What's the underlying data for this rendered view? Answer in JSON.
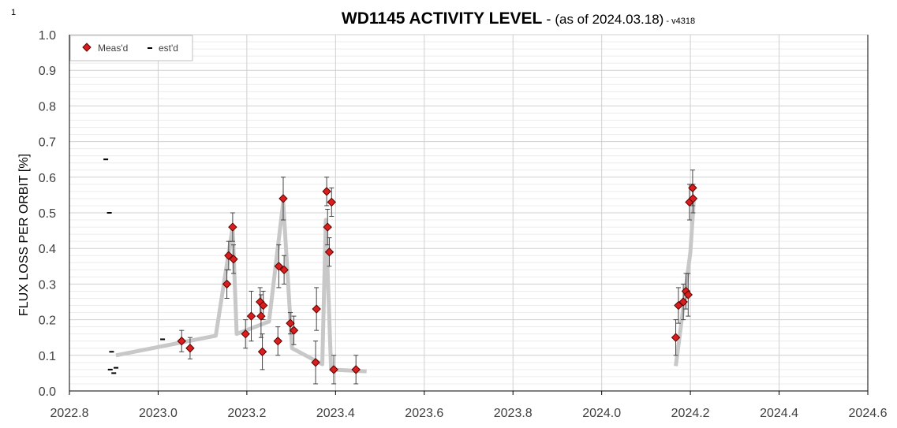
{
  "page_number": "1",
  "chart_data": {
    "type": "scatter",
    "title": {
      "main": "WD1145 ACTIVITY LEVEL",
      "dash": " - ",
      "date": "(as of 2024.03.18)",
      "version": " - v4318"
    },
    "xlabel": "",
    "ylabel": "FLUX LOSS  PER ORBIT [%]",
    "xlim": [
      2022.8,
      2024.6
    ],
    "ylim": [
      0.0,
      1.0
    ],
    "x_ticks": [
      "2022.8",
      "2023.0",
      "2023.2",
      "2023.4",
      "2023.6",
      "2023.8",
      "2024.0",
      "2024.2",
      "2024.4",
      "2024.6"
    ],
    "y_ticks": [
      "0.0",
      "0.1",
      "0.2",
      "0.3",
      "0.4",
      "0.5",
      "0.6",
      "0.7",
      "0.8",
      "0.9",
      "1.0"
    ],
    "grid": true,
    "legend_position": "top-left",
    "colors": {
      "measured": "#d91e1e",
      "trend": "#c8c8c8",
      "estimated": "#000000"
    },
    "series": [
      {
        "name": "Meas'd",
        "marker": "diamond",
        "points": [
          {
            "x": 2023.053,
            "y": 0.14,
            "err": 0.03
          },
          {
            "x": 2023.072,
            "y": 0.12,
            "err": 0.03
          },
          {
            "x": 2023.155,
            "y": 0.3,
            "err": 0.04
          },
          {
            "x": 2023.159,
            "y": 0.38,
            "err": 0.04
          },
          {
            "x": 2023.168,
            "y": 0.46,
            "err": 0.04
          },
          {
            "x": 2023.17,
            "y": 0.37,
            "err": 0.04
          },
          {
            "x": 2023.197,
            "y": 0.16,
            "err": 0.04
          },
          {
            "x": 2023.21,
            "y": 0.21,
            "err": 0.07
          },
          {
            "x": 2023.23,
            "y": 0.25,
            "err": 0.04
          },
          {
            "x": 2023.232,
            "y": 0.21,
            "err": 0.06
          },
          {
            "x": 2023.235,
            "y": 0.11,
            "err": 0.05
          },
          {
            "x": 2023.237,
            "y": 0.24,
            "err": 0.04
          },
          {
            "x": 2023.27,
            "y": 0.14,
            "err": 0.04
          },
          {
            "x": 2023.272,
            "y": 0.35,
            "err": 0.06
          },
          {
            "x": 2023.282,
            "y": 0.54,
            "err": 0.06
          },
          {
            "x": 2023.284,
            "y": 0.34,
            "err": 0.04
          },
          {
            "x": 2023.298,
            "y": 0.19,
            "err": 0.03
          },
          {
            "x": 2023.306,
            "y": 0.17,
            "err": 0.04
          },
          {
            "x": 2023.355,
            "y": 0.08,
            "err": 0.06
          },
          {
            "x": 2023.357,
            "y": 0.23,
            "err": 0.06
          },
          {
            "x": 2023.38,
            "y": 0.56,
            "err": 0.04
          },
          {
            "x": 2023.382,
            "y": 0.46,
            "err": 0.05
          },
          {
            "x": 2023.386,
            "y": 0.39,
            "err": 0.04
          },
          {
            "x": 2023.391,
            "y": 0.53,
            "err": 0.04
          },
          {
            "x": 2023.396,
            "y": 0.06,
            "err": 0.04
          },
          {
            "x": 2023.446,
            "y": 0.06,
            "err": 0.04
          },
          {
            "x": 2024.167,
            "y": 0.15,
            "err": 0.05
          },
          {
            "x": 2024.173,
            "y": 0.24,
            "err": 0.05
          },
          {
            "x": 2024.184,
            "y": 0.25,
            "err": 0.05
          },
          {
            "x": 2024.19,
            "y": 0.28,
            "err": 0.05
          },
          {
            "x": 2024.195,
            "y": 0.27,
            "err": 0.06
          },
          {
            "x": 2024.198,
            "y": 0.53,
            "err": 0.05
          },
          {
            "x": 2024.205,
            "y": 0.57,
            "err": 0.05
          },
          {
            "x": 2024.206,
            "y": 0.54,
            "err": 0.04
          }
        ]
      },
      {
        "name": "est'd",
        "marker": "dash",
        "points": [
          {
            "x": 2022.882,
            "y": 0.65
          },
          {
            "x": 2022.89,
            "y": 0.5
          },
          {
            "x": 2022.895,
            "y": 0.11
          },
          {
            "x": 2022.905,
            "y": 0.065
          },
          {
            "x": 2022.892,
            "y": 0.06
          },
          {
            "x": 2022.9,
            "y": 0.05
          },
          {
            "x": 2023.01,
            "y": 0.145
          }
        ]
      },
      {
        "name": "",
        "type": "line",
        "segments": [
          [
            {
              "x": 2022.905,
              "y": 0.1
            },
            {
              "x": 2023.13,
              "y": 0.155
            },
            {
              "x": 2023.168,
              "y": 0.46
            },
            {
              "x": 2023.177,
              "y": 0.16
            },
            {
              "x": 2023.25,
              "y": 0.195
            },
            {
              "x": 2023.282,
              "y": 0.53
            },
            {
              "x": 2023.302,
              "y": 0.12
            },
            {
              "x": 2023.37,
              "y": 0.075
            },
            {
              "x": 2023.378,
              "y": 0.48
            },
            {
              "x": 2023.39,
              "y": 0.06
            },
            {
              "x": 2023.47,
              "y": 0.055
            }
          ],
          [
            {
              "x": 2024.167,
              "y": 0.07
            },
            {
              "x": 2024.2,
              "y": 0.39
            },
            {
              "x": 2024.208,
              "y": 0.54
            }
          ]
        ]
      }
    ]
  }
}
